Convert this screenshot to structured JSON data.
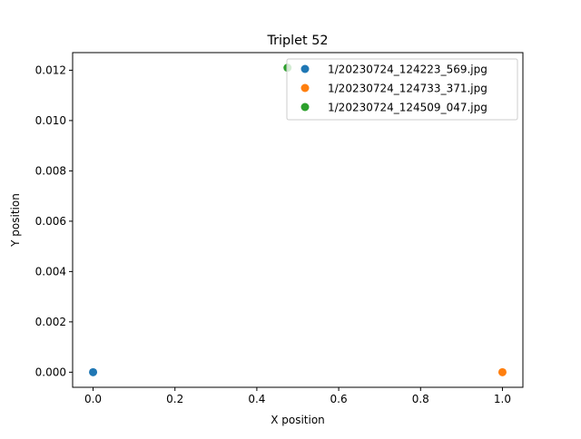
{
  "chart_data": {
    "type": "scatter",
    "title": "Triplet 52",
    "xlabel": "X position",
    "ylabel": "Y position",
    "xlim": [
      -0.05,
      1.05
    ],
    "ylim": [
      -0.0006,
      0.0127
    ],
    "x_ticks": [
      0.0,
      0.2,
      0.4,
      0.6,
      0.8,
      1.0
    ],
    "x_tick_labels": [
      "0.0",
      "0.2",
      "0.4",
      "0.6",
      "0.8",
      "1.0"
    ],
    "y_ticks": [
      0.0,
      0.002,
      0.004,
      0.006,
      0.008,
      0.01,
      0.012
    ],
    "y_tick_labels": [
      "0.000",
      "0.002",
      "0.004",
      "0.006",
      "0.008",
      "0.010",
      "0.012"
    ],
    "grid": false,
    "legend_position": "upper right",
    "series": [
      {
        "name": "1/20230724_124223_569.jpg",
        "color": "#1f77b4",
        "x": [
          0.0
        ],
        "y": [
          0.0
        ]
      },
      {
        "name": "1/20230724_124733_371.jpg",
        "color": "#ff7f0e",
        "x": [
          1.0
        ],
        "y": [
          0.0
        ]
      },
      {
        "name": "1/20230724_124509_047.jpg",
        "color": "#2ca02c",
        "x": [
          0.475
        ],
        "y": [
          0.0121
        ]
      }
    ]
  }
}
